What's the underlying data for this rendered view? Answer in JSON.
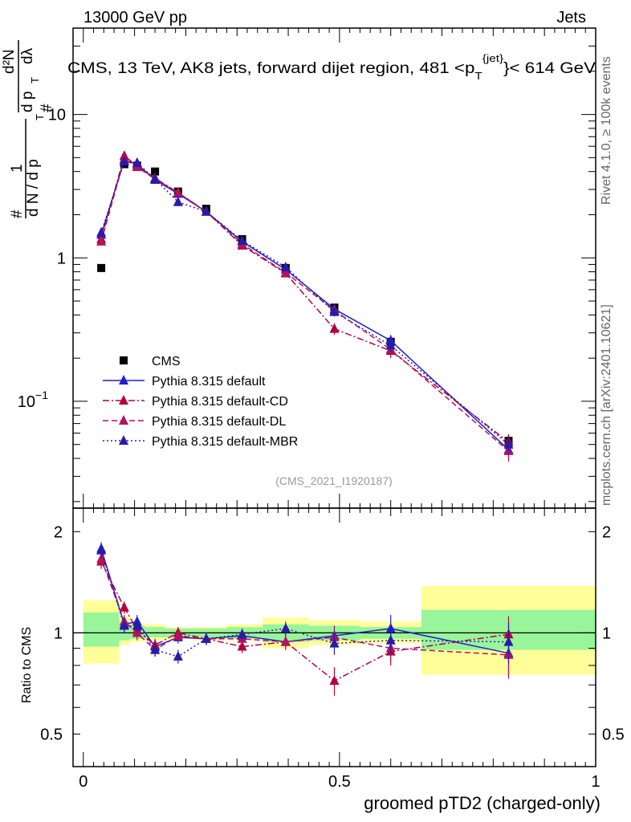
{
  "header": {
    "energy_label": "13000 GeV pp",
    "category_label": "Jets"
  },
  "side": {
    "rivet_label": "Rivet 4.1.0, ≥ 100k events",
    "mcplots_label": "mcplots.cern.ch [arXiv:2401.10621]"
  },
  "chart_data": [
    {
      "type": "scatter",
      "panel": "main",
      "title": "CMS, 13 TeV, AK8 jets, forward dijet region, 481 <p_T^{jet}< 614 GeV",
      "title_parts": {
        "before": "CMS, 13 TeV, AK8 jets, forward dijet region, 481 <p",
        "sub": "T",
        "sup": "{jet}",
        "after": "}< 614 GeV"
      },
      "ylabel_parts": {
        "one": "1",
        "hash": "#",
        "dN": "d N / d p",
        "T": "T",
        "numerator": "d²N",
        "denominator": "d p",
        "dlambda": "dλ"
      },
      "xlabel": "groomed pTD2 (charged-only)",
      "yscale": "log",
      "ylim": [
        0.018,
        40
      ],
      "xlim": [
        -0.02,
        1.0
      ],
      "y_ticks": [
        {
          "value": 0.1,
          "label": "10",
          "exp": "−1"
        },
        {
          "value": 1,
          "label": "1",
          "exp": ""
        },
        {
          "value": 10,
          "label": "10",
          "exp": ""
        }
      ],
      "analysis_label": "(CMS_2021_I1920187)",
      "series": [
        {
          "name": "CMS",
          "style": "square",
          "color": "#000000",
          "x": [
            0.035,
            0.08,
            0.105,
            0.14,
            0.185,
            0.24,
            0.31,
            0.395,
            0.49,
            0.6,
            0.83
          ],
          "y": [
            0.85,
            4.5,
            4.4,
            4.0,
            2.9,
            2.2,
            1.35,
            0.85,
            0.45,
            0.26,
            0.053
          ],
          "err": [
            0.03,
            0.2,
            0.2,
            0.15,
            0.12,
            0.1,
            0.06,
            0.04,
            0.025,
            0.02,
            0.006
          ]
        },
        {
          "name": "Pythia 8.315 default",
          "style": "solid",
          "color": "#1f1fcc",
          "x": [
            0.035,
            0.08,
            0.105,
            0.14,
            0.185,
            0.24,
            0.31,
            0.395,
            0.49,
            0.6,
            0.83
          ],
          "y": [
            1.45,
            4.8,
            4.5,
            3.5,
            2.8,
            2.1,
            1.3,
            0.83,
            0.44,
            0.265,
            0.046
          ],
          "err": [
            0.05,
            0.15,
            0.15,
            0.12,
            0.1,
            0.07,
            0.05,
            0.04,
            0.03,
            0.025,
            0.007
          ]
        },
        {
          "name": "Pythia 8.315 default-CD",
          "style": "dashdot",
          "color": "#b3003c",
          "x": [
            0.035,
            0.08,
            0.105,
            0.14,
            0.185,
            0.24,
            0.31,
            0.395,
            0.49,
            0.6,
            0.83
          ],
          "y": [
            1.35,
            5.15,
            4.35,
            3.6,
            2.85,
            2.1,
            1.22,
            0.78,
            0.32,
            0.225,
            0.052
          ],
          "err": [
            0.05,
            0.15,
            0.15,
            0.12,
            0.1,
            0.07,
            0.05,
            0.04,
            0.03,
            0.025,
            0.007
          ]
        },
        {
          "name": "Pythia 8.315 default-DL",
          "style": "dashed",
          "color": "#b3125e",
          "x": [
            0.035,
            0.08,
            0.105,
            0.14,
            0.185,
            0.24,
            0.31,
            0.395,
            0.49,
            0.6,
            0.83
          ],
          "y": [
            1.3,
            4.9,
            4.3,
            3.55,
            2.85,
            2.1,
            1.25,
            0.79,
            0.43,
            0.23,
            0.045
          ],
          "err": [
            0.05,
            0.15,
            0.15,
            0.12,
            0.1,
            0.07,
            0.05,
            0.04,
            0.03,
            0.025,
            0.007
          ]
        },
        {
          "name": "Pythia 8.315 default-MBR",
          "style": "dotted",
          "color": "#2a1aa8",
          "x": [
            0.035,
            0.08,
            0.105,
            0.14,
            0.185,
            0.24,
            0.31,
            0.395,
            0.49,
            0.6,
            0.83
          ],
          "y": [
            1.5,
            4.7,
            4.6,
            3.55,
            2.45,
            2.1,
            1.32,
            0.86,
            0.42,
            0.245,
            0.05
          ],
          "err": [
            0.05,
            0.15,
            0.15,
            0.12,
            0.1,
            0.07,
            0.05,
            0.04,
            0.03,
            0.025,
            0.007
          ]
        }
      ]
    },
    {
      "type": "scatter",
      "panel": "ratio",
      "ylabel": "Ratio to CMS",
      "yscale": "log",
      "ylim": [
        0.4,
        2.35
      ],
      "xlim": [
        -0.02,
        1.0
      ],
      "y_ticks": [
        {
          "value": 0.5,
          "label": "0.5"
        },
        {
          "value": 1,
          "label": "1"
        },
        {
          "value": 2,
          "label": "2"
        }
      ],
      "x_ticks": [
        {
          "value": 0,
          "label": "0"
        },
        {
          "value": 0.5,
          "label": "0.5"
        },
        {
          "value": 1,
          "label": "1"
        }
      ],
      "uncertainty_bands": [
        {
          "x0": 0.0,
          "x1": 0.07,
          "inner": [
            0.91,
            1.15
          ],
          "outer": [
            0.81,
            1.25
          ]
        },
        {
          "x0": 0.07,
          "x1": 0.09,
          "inner": [
            0.95,
            1.08
          ],
          "outer": [
            0.92,
            1.12
          ]
        },
        {
          "x0": 0.09,
          "x1": 0.12,
          "inner": [
            0.96,
            1.05
          ],
          "outer": [
            0.94,
            1.07
          ]
        },
        {
          "x0": 0.12,
          "x1": 0.16,
          "inner": [
            0.97,
            1.04
          ],
          "outer": [
            0.95,
            1.06
          ]
        },
        {
          "x0": 0.16,
          "x1": 0.21,
          "inner": [
            0.97,
            1.03
          ],
          "outer": [
            0.96,
            1.04
          ]
        },
        {
          "x0": 0.21,
          "x1": 0.28,
          "inner": [
            0.97,
            1.03
          ],
          "outer": [
            0.95,
            1.04
          ]
        },
        {
          "x0": 0.28,
          "x1": 0.35,
          "inner": [
            0.96,
            1.04
          ],
          "outer": [
            0.95,
            1.06
          ]
        },
        {
          "x0": 0.35,
          "x1": 0.44,
          "inner": [
            0.94,
            1.06
          ],
          "outer": [
            0.9,
            1.11
          ]
        },
        {
          "x0": 0.44,
          "x1": 0.54,
          "inner": [
            0.95,
            1.05
          ],
          "outer": [
            0.92,
            1.09
          ]
        },
        {
          "x0": 0.54,
          "x1": 0.66,
          "inner": [
            0.96,
            1.04
          ],
          "outer": [
            0.93,
            1.08
          ]
        },
        {
          "x0": 0.66,
          "x1": 1.0,
          "inner": [
            0.89,
            1.17
          ],
          "outer": [
            0.75,
            1.38
          ]
        }
      ],
      "series": [
        {
          "name": "Pythia 8.315 default",
          "style": "solid",
          "color": "#1f1fcc",
          "x": [
            0.035,
            0.08,
            0.105,
            0.14,
            0.185,
            0.24,
            0.31,
            0.395,
            0.49,
            0.6,
            0.83
          ],
          "y": [
            1.78,
            1.06,
            1.08,
            0.91,
            0.97,
            0.96,
            0.98,
            0.94,
            0.98,
            1.03,
            0.87
          ],
          "err": [
            0.08,
            0.05,
            0.05,
            0.04,
            0.04,
            0.04,
            0.04,
            0.05,
            0.07,
            0.1,
            0.13
          ]
        },
        {
          "name": "Pythia 8.315 default-CD",
          "style": "dashdot",
          "color": "#b3003c",
          "x": [
            0.035,
            0.08,
            0.105,
            0.14,
            0.185,
            0.24,
            0.31,
            0.395,
            0.49,
            0.6,
            0.83
          ],
          "y": [
            1.63,
            1.19,
            1.02,
            0.92,
            1.0,
            0.96,
            0.91,
            0.94,
            0.72,
            0.88,
            0.99
          ],
          "err": [
            0.08,
            0.05,
            0.05,
            0.04,
            0.04,
            0.04,
            0.04,
            0.05,
            0.07,
            0.08,
            0.13
          ]
        },
        {
          "name": "Pythia 8.315 default-DL",
          "style": "dashed",
          "color": "#b3125e",
          "x": [
            0.035,
            0.08,
            0.105,
            0.14,
            0.185,
            0.24,
            0.31,
            0.395,
            0.49,
            0.6,
            0.83
          ],
          "y": [
            1.66,
            1.08,
            1.0,
            0.89,
            0.98,
            0.96,
            0.96,
            0.94,
            0.97,
            0.9,
            0.86
          ],
          "err": [
            0.08,
            0.05,
            0.05,
            0.04,
            0.04,
            0.04,
            0.04,
            0.05,
            0.07,
            0.08,
            0.13
          ]
        },
        {
          "name": "Pythia 8.315 default-MBR",
          "style": "dotted",
          "color": "#2a1aa8",
          "x": [
            0.035,
            0.08,
            0.105,
            0.14,
            0.185,
            0.24,
            0.31,
            0.395,
            0.49,
            0.6,
            0.83
          ],
          "y": [
            1.76,
            1.05,
            1.05,
            0.89,
            0.85,
            0.96,
            0.99,
            1.03,
            0.93,
            0.95,
            0.94
          ],
          "err": [
            0.08,
            0.05,
            0.05,
            0.04,
            0.04,
            0.04,
            0.04,
            0.05,
            0.07,
            0.08,
            0.13
          ]
        }
      ]
    }
  ]
}
